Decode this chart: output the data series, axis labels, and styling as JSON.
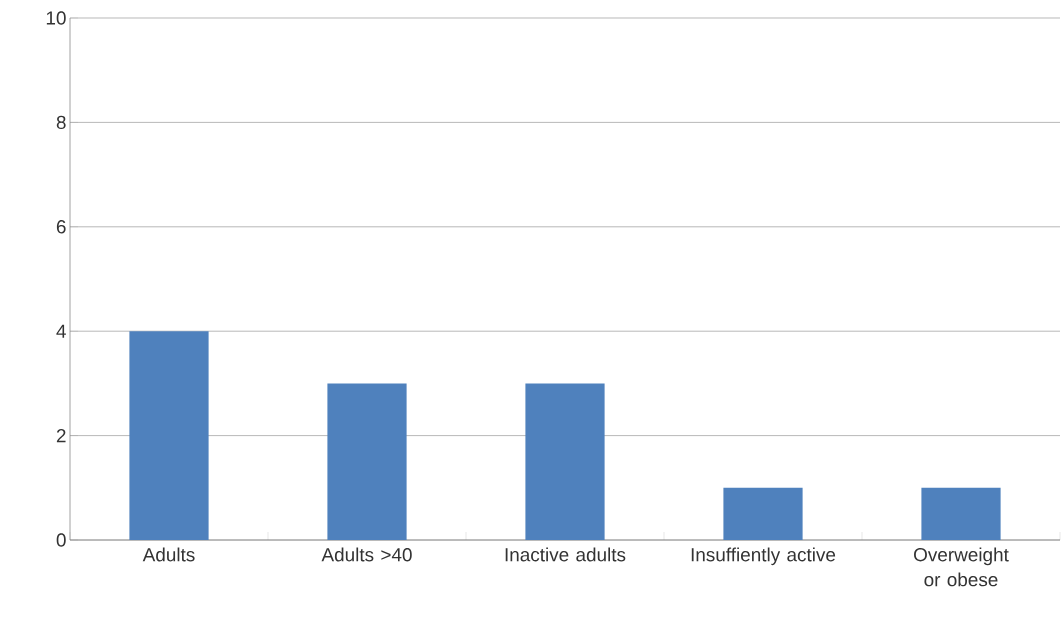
{
  "chart_data": {
    "type": "bar",
    "categories": [
      "Adults",
      "Adults >40",
      "Inactive adults",
      "Insuffiently active",
      "Overweight or obese"
    ],
    "values": [
      4,
      3,
      3,
      1,
      1
    ],
    "color": "#4f81bd",
    "ylim": [
      0,
      10
    ],
    "yticks": [
      0,
      2,
      4,
      6,
      8,
      10
    ],
    "grid": "y"
  }
}
